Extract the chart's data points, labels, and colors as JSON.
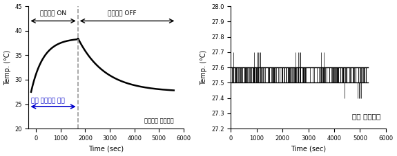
{
  "left_chart": {
    "xlabel": "Time (sec)",
    "ylabel": "Temp. (°C)",
    "xlim": [
      -300,
      5900
    ],
    "ylim": [
      20,
      45
    ],
    "yticks": [
      20,
      25,
      30,
      35,
      40,
      45
    ],
    "xticks": [
      0,
      1000,
      2000,
      3000,
      4000,
      5000,
      6000
    ],
    "dashed_line_x": 1700,
    "plasma_on_label": "플라즈마 ON",
    "plasma_off_label": "플라즈마 OFF",
    "body_temp_label": "인체 적용가능 온도",
    "region_label": "플라즈마 주변영역",
    "curve_color": "#000000",
    "dashed_color": "#999999",
    "arrow_color": "#000000",
    "body_arrow_color": "#0000cc",
    "body_label_color": "#0000cc"
  },
  "right_chart": {
    "xlabel": "Time (sec)",
    "ylabel": "Temp. (°C)",
    "xlim": [
      0,
      6000
    ],
    "ylim": [
      27.2,
      28.0
    ],
    "yticks": [
      27.2,
      27.3,
      27.4,
      27.5,
      27.6,
      27.7,
      27.8,
      27.9,
      28.0
    ],
    "xticks": [
      0,
      1000,
      2000,
      3000,
      4000,
      5000,
      6000
    ],
    "region_label": "내부 중앙영역",
    "line_color": "#000000"
  }
}
